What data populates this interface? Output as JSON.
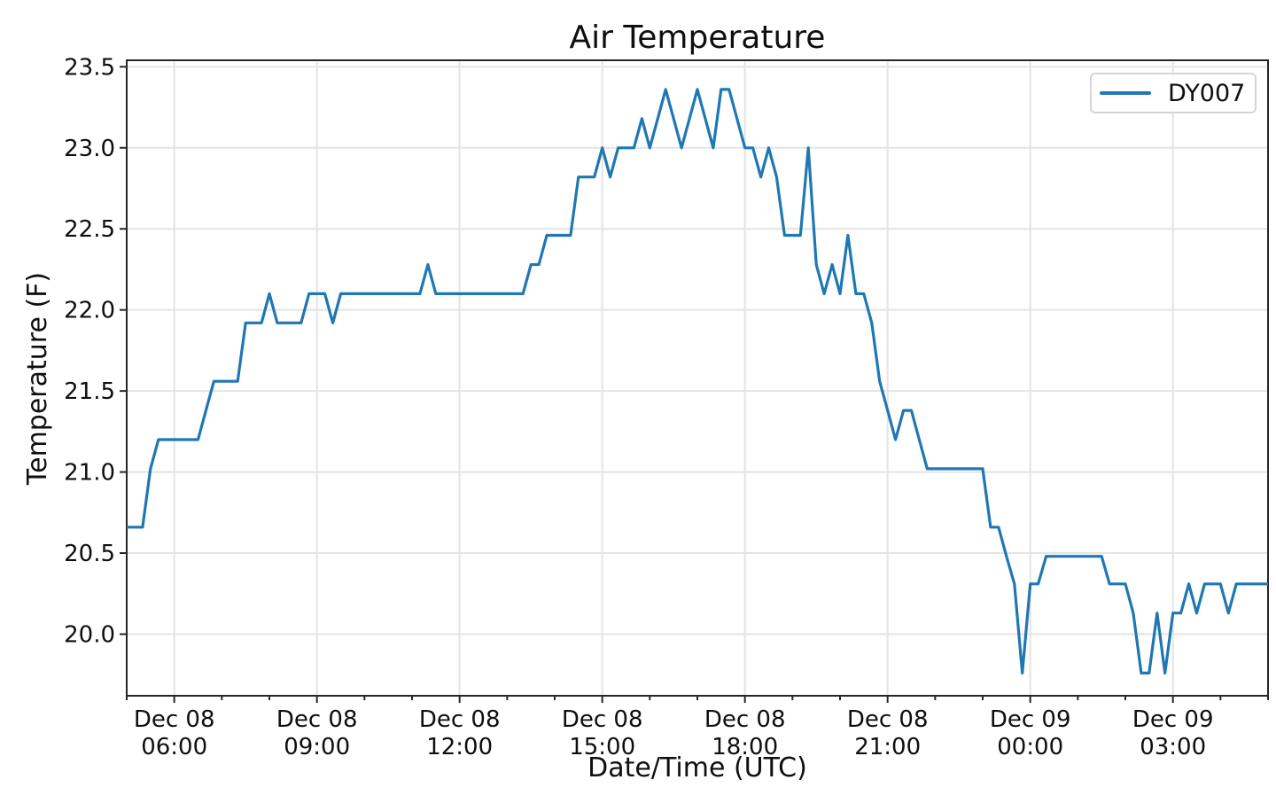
{
  "chart_data": {
    "type": "line",
    "title": "Air Temperature",
    "xlabel": "Date/Time (UTC)",
    "ylabel": "Temperature (F)",
    "grid": true,
    "legend_position": "upper right",
    "x_range": [
      "Dec 08 05:00",
      "Dec 09 05:00"
    ],
    "ylim": [
      19.62,
      23.54
    ],
    "y_ticks": [
      "20.0",
      "20.5",
      "21.0",
      "21.5",
      "22.0",
      "22.5",
      "23.0",
      "23.5"
    ],
    "x_ticks": [
      {
        "date": "Dec 08",
        "time": "06:00"
      },
      {
        "date": "Dec 08",
        "time": "09:00"
      },
      {
        "date": "Dec 08",
        "time": "12:00"
      },
      {
        "date": "Dec 08",
        "time": "15:00"
      },
      {
        "date": "Dec 08",
        "time": "18:00"
      },
      {
        "date": "Dec 08",
        "time": "21:00"
      },
      {
        "date": "Dec 09",
        "time": "00:00"
      },
      {
        "date": "Dec 09",
        "time": "03:00"
      }
    ],
    "x_minor_interval_minutes": 60,
    "colors": {
      "line": "#1f77b4",
      "grid": "#e4e4e4",
      "spine": "#262626",
      "text": "#0f0f0f",
      "legend_border": "#d5d5d5"
    },
    "series": [
      {
        "name": "DY007",
        "color": "#1f77b4",
        "points": [
          [
            "Dec 08 05:00",
            20.66
          ],
          [
            "Dec 08 05:10",
            20.66
          ],
          [
            "Dec 08 05:20",
            20.66
          ],
          [
            "Dec 08 05:30",
            21.02
          ],
          [
            "Dec 08 05:40",
            21.2
          ],
          [
            "Dec 08 05:50",
            21.2
          ],
          [
            "Dec 08 06:00",
            21.2
          ],
          [
            "Dec 08 06:10",
            21.2
          ],
          [
            "Dec 08 06:20",
            21.2
          ],
          [
            "Dec 08 06:30",
            21.2
          ],
          [
            "Dec 08 06:40",
            21.38
          ],
          [
            "Dec 08 06:50",
            21.56
          ],
          [
            "Dec 08 07:00",
            21.56
          ],
          [
            "Dec 08 07:10",
            21.56
          ],
          [
            "Dec 08 07:20",
            21.56
          ],
          [
            "Dec 08 07:30",
            21.92
          ],
          [
            "Dec 08 07:40",
            21.92
          ],
          [
            "Dec 08 07:50",
            21.92
          ],
          [
            "Dec 08 08:00",
            22.1
          ],
          [
            "Dec 08 08:10",
            21.92
          ],
          [
            "Dec 08 08:20",
            21.92
          ],
          [
            "Dec 08 08:30",
            21.92
          ],
          [
            "Dec 08 08:40",
            21.92
          ],
          [
            "Dec 08 08:50",
            22.1
          ],
          [
            "Dec 08 09:00",
            22.1
          ],
          [
            "Dec 08 09:10",
            22.1
          ],
          [
            "Dec 08 09:20",
            21.92
          ],
          [
            "Dec 08 09:30",
            22.1
          ],
          [
            "Dec 08 09:40",
            22.1
          ],
          [
            "Dec 08 09:50",
            22.1
          ],
          [
            "Dec 08 10:00",
            22.1
          ],
          [
            "Dec 08 10:10",
            22.1
          ],
          [
            "Dec 08 10:20",
            22.1
          ],
          [
            "Dec 08 10:30",
            22.1
          ],
          [
            "Dec 08 10:40",
            22.1
          ],
          [
            "Dec 08 10:50",
            22.1
          ],
          [
            "Dec 08 11:00",
            22.1
          ],
          [
            "Dec 08 11:10",
            22.1
          ],
          [
            "Dec 08 11:20",
            22.28
          ],
          [
            "Dec 08 11:30",
            22.1
          ],
          [
            "Dec 08 11:40",
            22.1
          ],
          [
            "Dec 08 11:50",
            22.1
          ],
          [
            "Dec 08 12:00",
            22.1
          ],
          [
            "Dec 08 12:10",
            22.1
          ],
          [
            "Dec 08 12:20",
            22.1
          ],
          [
            "Dec 08 12:30",
            22.1
          ],
          [
            "Dec 08 12:40",
            22.1
          ],
          [
            "Dec 08 12:50",
            22.1
          ],
          [
            "Dec 08 13:00",
            22.1
          ],
          [
            "Dec 08 13:10",
            22.1
          ],
          [
            "Dec 08 13:20",
            22.1
          ],
          [
            "Dec 08 13:30",
            22.28
          ],
          [
            "Dec 08 13:40",
            22.28
          ],
          [
            "Dec 08 13:50",
            22.46
          ],
          [
            "Dec 08 14:00",
            22.46
          ],
          [
            "Dec 08 14:10",
            22.46
          ],
          [
            "Dec 08 14:20",
            22.46
          ],
          [
            "Dec 08 14:30",
            22.82
          ],
          [
            "Dec 08 14:40",
            22.82
          ],
          [
            "Dec 08 14:50",
            22.82
          ],
          [
            "Dec 08 15:00",
            23.0
          ],
          [
            "Dec 08 15:10",
            22.82
          ],
          [
            "Dec 08 15:20",
            23.0
          ],
          [
            "Dec 08 15:30",
            23.0
          ],
          [
            "Dec 08 15:40",
            23.0
          ],
          [
            "Dec 08 15:50",
            23.18
          ],
          [
            "Dec 08 16:00",
            23.0
          ],
          [
            "Dec 08 16:10",
            23.18
          ],
          [
            "Dec 08 16:20",
            23.36
          ],
          [
            "Dec 08 16:30",
            23.18
          ],
          [
            "Dec 08 16:40",
            23.0
          ],
          [
            "Dec 08 16:50",
            23.18
          ],
          [
            "Dec 08 17:00",
            23.36
          ],
          [
            "Dec 08 17:10",
            23.18
          ],
          [
            "Dec 08 17:20",
            23.0
          ],
          [
            "Dec 08 17:30",
            23.36
          ],
          [
            "Dec 08 17:40",
            23.36
          ],
          [
            "Dec 08 17:50",
            23.18
          ],
          [
            "Dec 08 18:00",
            23.0
          ],
          [
            "Dec 08 18:10",
            23.0
          ],
          [
            "Dec 08 18:20",
            22.82
          ],
          [
            "Dec 08 18:30",
            23.0
          ],
          [
            "Dec 08 18:40",
            22.82
          ],
          [
            "Dec 08 18:50",
            22.46
          ],
          [
            "Dec 08 19:00",
            22.46
          ],
          [
            "Dec 08 19:10",
            22.46
          ],
          [
            "Dec 08 19:20",
            23.0
          ],
          [
            "Dec 08 19:30",
            22.28
          ],
          [
            "Dec 08 19:40",
            22.1
          ],
          [
            "Dec 08 19:50",
            22.28
          ],
          [
            "Dec 08 20:00",
            22.1
          ],
          [
            "Dec 08 20:10",
            22.46
          ],
          [
            "Dec 08 20:20",
            22.1
          ],
          [
            "Dec 08 20:30",
            22.1
          ],
          [
            "Dec 08 20:40",
            21.92
          ],
          [
            "Dec 08 20:50",
            21.56
          ],
          [
            "Dec 08 21:00",
            21.38
          ],
          [
            "Dec 08 21:10",
            21.2
          ],
          [
            "Dec 08 21:20",
            21.38
          ],
          [
            "Dec 08 21:30",
            21.38
          ],
          [
            "Dec 08 21:40",
            21.2
          ],
          [
            "Dec 08 21:50",
            21.02
          ],
          [
            "Dec 08 22:00",
            21.02
          ],
          [
            "Dec 08 22:10",
            21.02
          ],
          [
            "Dec 08 22:20",
            21.02
          ],
          [
            "Dec 08 22:30",
            21.02
          ],
          [
            "Dec 08 22:40",
            21.02
          ],
          [
            "Dec 08 22:50",
            21.02
          ],
          [
            "Dec 08 23:00",
            21.02
          ],
          [
            "Dec 08 23:10",
            20.66
          ],
          [
            "Dec 08 23:20",
            20.66
          ],
          [
            "Dec 08 23:30",
            20.48
          ],
          [
            "Dec 08 23:40",
            20.31
          ],
          [
            "Dec 08 23:50",
            19.76
          ],
          [
            "Dec 09 00:00",
            20.31
          ],
          [
            "Dec 09 00:10",
            20.31
          ],
          [
            "Dec 09 00:20",
            20.48
          ],
          [
            "Dec 09 00:30",
            20.48
          ],
          [
            "Dec 09 00:40",
            20.48
          ],
          [
            "Dec 09 00:50",
            20.48
          ],
          [
            "Dec 09 01:00",
            20.48
          ],
          [
            "Dec 09 01:10",
            20.48
          ],
          [
            "Dec 09 01:20",
            20.48
          ],
          [
            "Dec 09 01:30",
            20.48
          ],
          [
            "Dec 09 01:40",
            20.31
          ],
          [
            "Dec 09 01:50",
            20.31
          ],
          [
            "Dec 09 02:00",
            20.31
          ],
          [
            "Dec 09 02:10",
            20.13
          ],
          [
            "Dec 09 02:20",
            19.76
          ],
          [
            "Dec 09 02:30",
            19.76
          ],
          [
            "Dec 09 02:40",
            20.13
          ],
          [
            "Dec 09 02:50",
            19.76
          ],
          [
            "Dec 09 03:00",
            20.13
          ],
          [
            "Dec 09 03:10",
            20.13
          ],
          [
            "Dec 09 03:20",
            20.31
          ],
          [
            "Dec 09 03:30",
            20.13
          ],
          [
            "Dec 09 03:40",
            20.31
          ],
          [
            "Dec 09 03:50",
            20.31
          ],
          [
            "Dec 09 04:00",
            20.31
          ],
          [
            "Dec 09 04:10",
            20.13
          ],
          [
            "Dec 09 04:20",
            20.31
          ],
          [
            "Dec 09 04:30",
            20.31
          ],
          [
            "Dec 09 04:40",
            20.31
          ],
          [
            "Dec 09 04:50",
            20.31
          ],
          [
            "Dec 09 05:00",
            20.31
          ]
        ]
      }
    ]
  }
}
